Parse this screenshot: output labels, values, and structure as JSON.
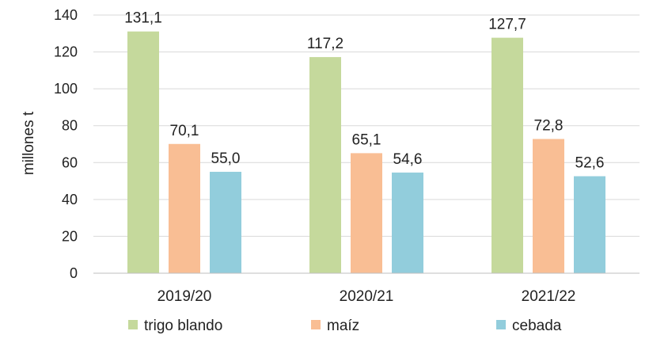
{
  "chart_data": {
    "type": "bar",
    "title": "",
    "xlabel": "",
    "ylabel": "millones t",
    "ylim": [
      0,
      140
    ],
    "yticks": [
      0,
      20,
      40,
      60,
      80,
      100,
      120,
      140
    ],
    "grid": true,
    "legend_position": "bottom",
    "categories": [
      "2019/20",
      "2020/21",
      "2021/22"
    ],
    "series": [
      {
        "name": "trigo blando",
        "color": "#c5d99c",
        "values": [
          131.1,
          117.2,
          127.7
        ],
        "labels": [
          "131,1",
          "117,2",
          "127,7"
        ]
      },
      {
        "name": "maíz",
        "color": "#f9be94",
        "values": [
          70.1,
          65.1,
          72.8
        ],
        "labels": [
          "70,1",
          "65,1",
          "72,8"
        ]
      },
      {
        "name": "cebada",
        "color": "#92cddc",
        "values": [
          55.0,
          54.6,
          52.6
        ],
        "labels": [
          "55,0",
          "54,6",
          "52,6"
        ]
      }
    ]
  }
}
